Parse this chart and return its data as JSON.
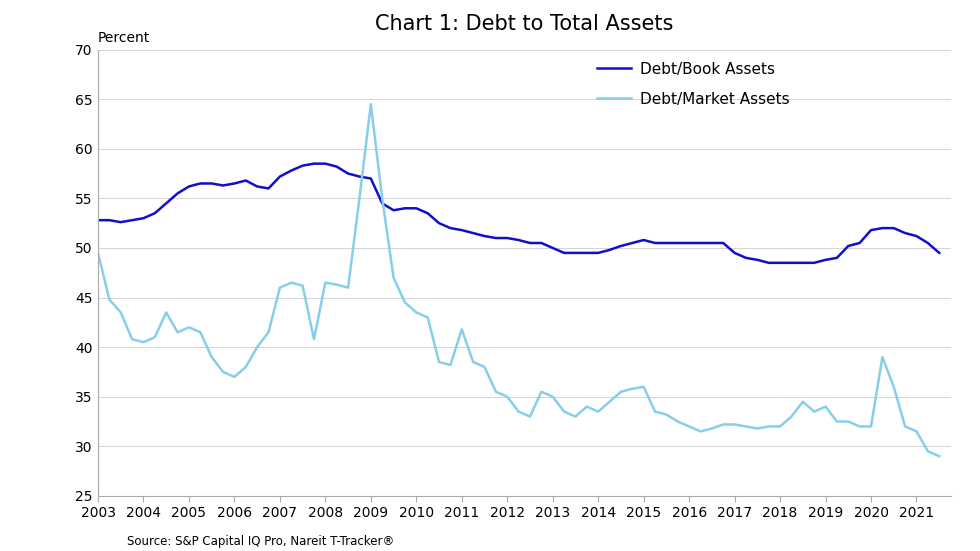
{
  "title": "Chart 1: Debt to Total Assets",
  "percent_label": "Percent",
  "source": "Source: S&P Capital IQ Pro, Nareit T-Tracker®",
  "ylim": [
    25,
    70
  ],
  "yticks": [
    25,
    30,
    35,
    40,
    45,
    50,
    55,
    60,
    65,
    70
  ],
  "xticks": [
    "2003",
    "2004",
    "2005",
    "2006",
    "2007",
    "2008",
    "2009",
    "2010",
    "2011",
    "2012",
    "2013",
    "2014",
    "2015",
    "2016",
    "2017",
    "2018",
    "2019",
    "2020",
    "2021"
  ],
  "book_color": "#1010CC",
  "market_color": "#87CEEB",
  "book_label": "Debt/Book Assets",
  "market_label": "Debt/Market Assets",
  "book_x": [
    2003.0,
    2003.25,
    2003.5,
    2003.75,
    2004.0,
    2004.25,
    2004.5,
    2004.75,
    2005.0,
    2005.25,
    2005.5,
    2005.75,
    2006.0,
    2006.25,
    2006.5,
    2006.75,
    2007.0,
    2007.25,
    2007.5,
    2007.75,
    2008.0,
    2008.25,
    2008.5,
    2008.75,
    2009.0,
    2009.25,
    2009.5,
    2009.75,
    2010.0,
    2010.25,
    2010.5,
    2010.75,
    2011.0,
    2011.25,
    2011.5,
    2011.75,
    2012.0,
    2012.25,
    2012.5,
    2012.75,
    2013.0,
    2013.25,
    2013.5,
    2013.75,
    2014.0,
    2014.25,
    2014.5,
    2014.75,
    2015.0,
    2015.25,
    2015.5,
    2015.75,
    2016.0,
    2016.25,
    2016.5,
    2016.75,
    2017.0,
    2017.25,
    2017.5,
    2017.75,
    2018.0,
    2018.25,
    2018.5,
    2018.75,
    2019.0,
    2019.25,
    2019.5,
    2019.75,
    2020.0,
    2020.25,
    2020.5,
    2020.75,
    2021.0,
    2021.25,
    2021.5
  ],
  "book_y": [
    52.8,
    52.8,
    52.6,
    52.8,
    53.0,
    53.5,
    54.5,
    55.5,
    56.2,
    56.5,
    56.5,
    56.3,
    56.5,
    56.8,
    56.2,
    56.0,
    57.2,
    57.8,
    58.3,
    58.5,
    58.5,
    58.2,
    57.5,
    57.2,
    57.0,
    54.5,
    53.8,
    54.0,
    54.0,
    53.5,
    52.5,
    52.0,
    51.8,
    51.5,
    51.2,
    51.0,
    51.0,
    50.8,
    50.5,
    50.5,
    50.0,
    49.5,
    49.5,
    49.5,
    49.5,
    49.8,
    50.2,
    50.5,
    50.8,
    50.5,
    50.5,
    50.5,
    50.5,
    50.5,
    50.5,
    50.5,
    49.5,
    49.0,
    48.8,
    48.5,
    48.5,
    48.5,
    48.5,
    48.5,
    48.8,
    49.0,
    50.2,
    50.5,
    51.8,
    52.0,
    52.0,
    51.5,
    51.2,
    50.5,
    49.5
  ],
  "market_x": [
    2003.0,
    2003.25,
    2003.5,
    2003.75,
    2004.0,
    2004.25,
    2004.5,
    2004.75,
    2005.0,
    2005.25,
    2005.5,
    2005.75,
    2006.0,
    2006.25,
    2006.5,
    2006.75,
    2007.0,
    2007.25,
    2007.5,
    2007.75,
    2008.0,
    2008.25,
    2008.5,
    2008.75,
    2009.0,
    2009.25,
    2009.5,
    2009.75,
    2010.0,
    2010.25,
    2010.5,
    2010.75,
    2011.0,
    2011.25,
    2011.5,
    2011.75,
    2012.0,
    2012.25,
    2012.5,
    2012.75,
    2013.0,
    2013.25,
    2013.5,
    2013.75,
    2014.0,
    2014.25,
    2014.5,
    2014.75,
    2015.0,
    2015.25,
    2015.5,
    2015.75,
    2016.0,
    2016.25,
    2016.5,
    2016.75,
    2017.0,
    2017.25,
    2017.5,
    2017.75,
    2018.0,
    2018.25,
    2018.5,
    2018.75,
    2019.0,
    2019.25,
    2019.5,
    2019.75,
    2020.0,
    2020.25,
    2020.5,
    2020.75,
    2021.0,
    2021.25,
    2021.5
  ],
  "market_y": [
    49.5,
    44.8,
    43.5,
    40.8,
    40.5,
    41.0,
    43.5,
    41.5,
    42.0,
    41.5,
    39.0,
    37.5,
    37.0,
    38.0,
    40.0,
    41.5,
    46.0,
    46.5,
    46.2,
    40.8,
    46.5,
    46.3,
    46.0,
    55.0,
    64.5,
    55.0,
    47.0,
    44.5,
    43.5,
    43.0,
    38.5,
    38.2,
    41.8,
    38.5,
    38.0,
    35.5,
    35.0,
    33.5,
    33.0,
    35.5,
    35.0,
    33.5,
    33.0,
    34.0,
    33.5,
    34.5,
    35.5,
    35.8,
    36.0,
    33.5,
    33.2,
    32.5,
    32.0,
    31.5,
    31.8,
    32.2,
    32.2,
    32.0,
    31.8,
    32.0,
    32.0,
    33.0,
    34.5,
    33.5,
    34.0,
    32.5,
    32.5,
    32.0,
    32.0,
    39.0,
    36.0,
    32.0,
    31.5,
    29.5,
    29.0
  ]
}
